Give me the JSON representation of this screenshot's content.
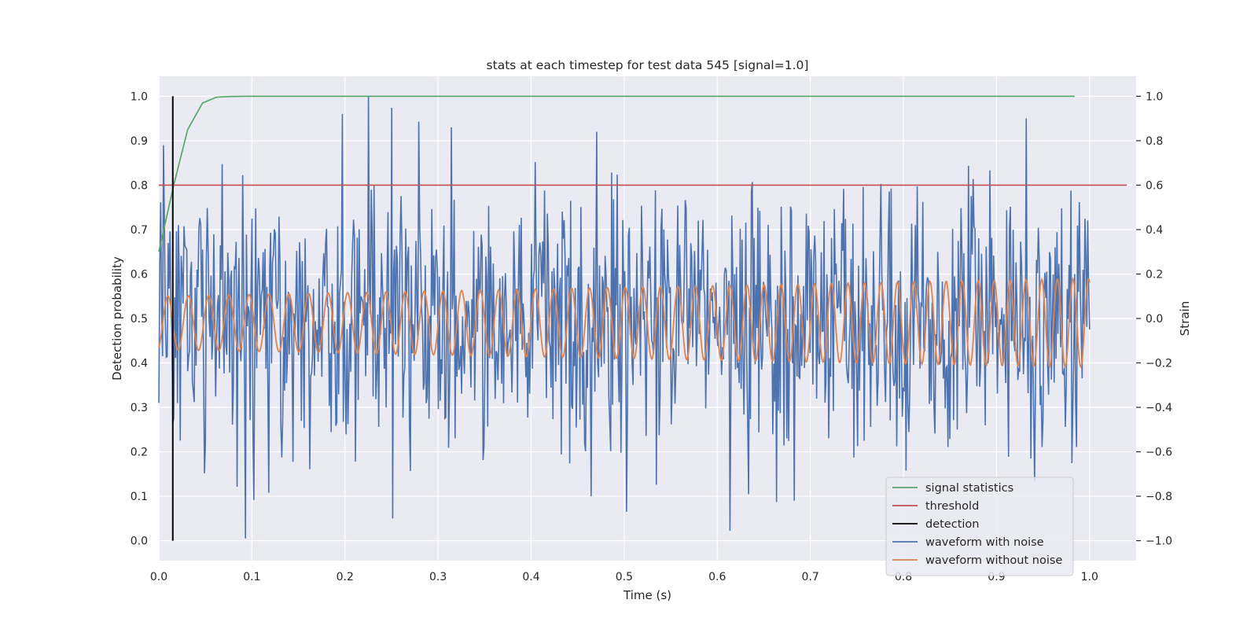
{
  "chart_data": {
    "type": "line",
    "title": "stats at each timestep for test data 545 [signal=1.0]",
    "xlabel": "Time (s)",
    "ylabel_left": "Detection probability",
    "ylabel_right": "Strain",
    "xlim": [
      0.0,
      1.05
    ],
    "ylim_left": [
      -0.045,
      1.045
    ],
    "ylim_right": [
      -1.09,
      1.09
    ],
    "x_ticks": [
      0.0,
      0.1,
      0.2,
      0.3,
      0.4,
      0.5,
      0.6,
      0.7,
      0.8,
      0.9,
      1.0
    ],
    "x_tick_labels": [
      "0.0",
      "0.1",
      "0.2",
      "0.3",
      "0.4",
      "0.5",
      "0.6",
      "0.7",
      "0.8",
      "0.9",
      "1.0"
    ],
    "y_left_ticks": [
      0.0,
      0.1,
      0.2,
      0.3,
      0.4,
      0.5,
      0.6,
      0.7,
      0.8,
      0.9,
      1.0
    ],
    "y_left_tick_labels": [
      "0.0",
      "0.1",
      "0.2",
      "0.3",
      "0.4",
      "0.5",
      "0.6",
      "0.7",
      "0.8",
      "0.9",
      "1.0"
    ],
    "y_right_ticks": [
      -1.0,
      -0.8,
      -0.6,
      -0.4,
      -0.2,
      0.0,
      0.2,
      0.4,
      0.6,
      0.8,
      1.0
    ],
    "y_right_tick_labels": [
      "−1.0",
      "−0.8",
      "−0.6",
      "−0.4",
      "−0.2",
      "0.0",
      "0.2",
      "0.4",
      "0.6",
      "0.8",
      "1.0"
    ],
    "grid": true,
    "legend_position": "lower-right",
    "colors": {
      "background": "#eaeaf2",
      "grid": "#ffffff",
      "signal_statistics": "#55a868",
      "threshold": "#c44e52",
      "detection": "#000000",
      "waveform_with_noise": "#4c72b0",
      "waveform_without_noise": "#dd8452"
    },
    "series": [
      {
        "name": "signal statistics",
        "axis": "left",
        "x": [
          0.0,
          0.016,
          0.031,
          0.047,
          0.062,
          0.078,
          0.094,
          0.109,
          0.125,
          0.2,
          0.4,
          0.6,
          0.8,
          0.984
        ],
        "y": [
          0.65,
          0.8,
          0.925,
          0.985,
          0.998,
          0.9995,
          1.0,
          1.0,
          1.0,
          1.0,
          1.0,
          1.0,
          1.0,
          1.0
        ]
      },
      {
        "name": "threshold",
        "axis": "left",
        "x": [
          0.0,
          1.04
        ],
        "y": [
          0.8,
          0.8
        ]
      },
      {
        "name": "detection",
        "axis": "left",
        "x": [
          0.015,
          0.015
        ],
        "y": [
          0.0,
          1.0
        ]
      },
      {
        "name": "waveform with noise",
        "axis": "right",
        "samples": 1000,
        "x_range": [
          0.0,
          1.0
        ],
        "y_range": [
          -1.0,
          1.0
        ],
        "y_std": 0.3,
        "y_sampled": [
          {
            "x": 0.0,
            "y": -0.38
          },
          {
            "x": 0.005,
            "y": 0.78
          },
          {
            "x": 0.093,
            "y": -0.99
          },
          {
            "x": 0.197,
            "y": 0.92
          },
          {
            "x": 0.225,
            "y": 1.0
          },
          {
            "x": 0.251,
            "y": -0.9
          },
          {
            "x": 0.314,
            "y": 0.86
          },
          {
            "x": 0.47,
            "y": 0.84
          },
          {
            "x": 0.503,
            "y": -0.87
          },
          {
            "x": 0.683,
            "y": -0.82
          },
          {
            "x": 0.932,
            "y": 0.9
          },
          {
            "x": 1.0,
            "y": -0.05
          }
        ]
      },
      {
        "name": "waveform without noise",
        "axis": "right",
        "x_range": [
          0.0,
          1.0
        ],
        "frequency_hz": 45,
        "frequency_end_hz": 60,
        "amplitude_start": 0.12,
        "amplitude_end": 0.2,
        "offset": -0.02
      }
    ]
  }
}
